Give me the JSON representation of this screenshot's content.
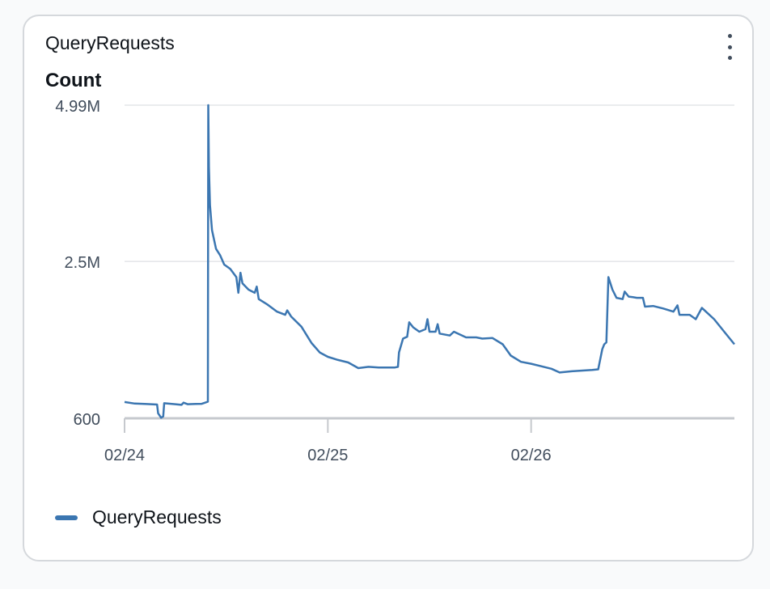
{
  "widget": {
    "title": "QueryRequests",
    "menu_icon": "vertical-ellipsis-icon"
  },
  "chart_data": {
    "type": "line",
    "ylabel": "Count",
    "ytick_labels": [
      "4.99M",
      "2.5M",
      "600"
    ],
    "ytick_values": [
      4990000,
      2500000,
      600
    ],
    "ylim": [
      600,
      4990000
    ],
    "xtick_labels": [
      "02/24",
      "02/25",
      "02/26"
    ],
    "xlim_days": [
      0,
      3
    ],
    "x_unit": "days",
    "grid": true,
    "legend_position": "bottom-left",
    "series": [
      {
        "name": "QueryRequests",
        "color": "#3b76b1",
        "points": [
          [
            0.0,
            260000
          ],
          [
            0.05,
            235000
          ],
          [
            0.1,
            230000
          ],
          [
            0.16,
            220000
          ],
          [
            0.165,
            80000
          ],
          [
            0.18,
            10000
          ],
          [
            0.19,
            30000
          ],
          [
            0.195,
            240000
          ],
          [
            0.25,
            225000
          ],
          [
            0.28,
            215000
          ],
          [
            0.29,
            250000
          ],
          [
            0.31,
            225000
          ],
          [
            0.35,
            230000
          ],
          [
            0.38,
            232000
          ],
          [
            0.41,
            265000
          ],
          [
            0.412,
            4990000
          ],
          [
            0.415,
            4000000
          ],
          [
            0.42,
            3400000
          ],
          [
            0.43,
            3000000
          ],
          [
            0.45,
            2700000
          ],
          [
            0.47,
            2600000
          ],
          [
            0.49,
            2450000
          ],
          [
            0.52,
            2380000
          ],
          [
            0.55,
            2250000
          ],
          [
            0.56,
            2000000
          ],
          [
            0.57,
            2320000
          ],
          [
            0.58,
            2150000
          ],
          [
            0.61,
            2050000
          ],
          [
            0.64,
            2000000
          ],
          [
            0.65,
            2100000
          ],
          [
            0.66,
            1900000
          ],
          [
            0.7,
            1820000
          ],
          [
            0.75,
            1700000
          ],
          [
            0.79,
            1650000
          ],
          [
            0.8,
            1720000
          ],
          [
            0.82,
            1620000
          ],
          [
            0.87,
            1460000
          ],
          [
            0.92,
            1200000
          ],
          [
            0.96,
            1050000
          ],
          [
            1.0,
            980000
          ],
          [
            1.05,
            930000
          ],
          [
            1.1,
            890000
          ],
          [
            1.15,
            800000
          ],
          [
            1.2,
            820000
          ],
          [
            1.25,
            810000
          ],
          [
            1.33,
            810000
          ],
          [
            1.345,
            820000
          ],
          [
            1.35,
            1050000
          ],
          [
            1.37,
            1270000
          ],
          [
            1.39,
            1300000
          ],
          [
            1.4,
            1530000
          ],
          [
            1.42,
            1450000
          ],
          [
            1.45,
            1380000
          ],
          [
            1.48,
            1420000
          ],
          [
            1.49,
            1580000
          ],
          [
            1.5,
            1380000
          ],
          [
            1.53,
            1380000
          ],
          [
            1.54,
            1500000
          ],
          [
            1.55,
            1350000
          ],
          [
            1.6,
            1320000
          ],
          [
            1.62,
            1380000
          ],
          [
            1.68,
            1290000
          ],
          [
            1.73,
            1290000
          ],
          [
            1.76,
            1270000
          ],
          [
            1.81,
            1280000
          ],
          [
            1.86,
            1180000
          ],
          [
            1.9,
            1000000
          ],
          [
            1.95,
            900000
          ],
          [
            2.0,
            870000
          ],
          [
            2.05,
            830000
          ],
          [
            2.1,
            790000
          ],
          [
            2.14,
            730000
          ],
          [
            2.2,
            750000
          ],
          [
            2.3,
            770000
          ],
          [
            2.33,
            780000
          ],
          [
            2.35,
            1100000
          ],
          [
            2.36,
            1180000
          ],
          [
            2.37,
            1210000
          ],
          [
            2.38,
            2250000
          ],
          [
            2.4,
            2050000
          ],
          [
            2.42,
            1920000
          ],
          [
            2.45,
            1900000
          ],
          [
            2.46,
            2020000
          ],
          [
            2.48,
            1940000
          ],
          [
            2.5,
            1930000
          ],
          [
            2.52,
            1920000
          ],
          [
            2.55,
            1920000
          ],
          [
            2.56,
            1780000
          ],
          [
            2.6,
            1790000
          ],
          [
            2.65,
            1750000
          ],
          [
            2.7,
            1700000
          ],
          [
            2.72,
            1800000
          ],
          [
            2.73,
            1650000
          ],
          [
            2.78,
            1650000
          ],
          [
            2.81,
            1580000
          ],
          [
            2.84,
            1760000
          ],
          [
            2.86,
            1700000
          ],
          [
            2.9,
            1580000
          ],
          [
            2.95,
            1380000
          ],
          [
            3.0,
            1180000
          ]
        ]
      }
    ]
  }
}
